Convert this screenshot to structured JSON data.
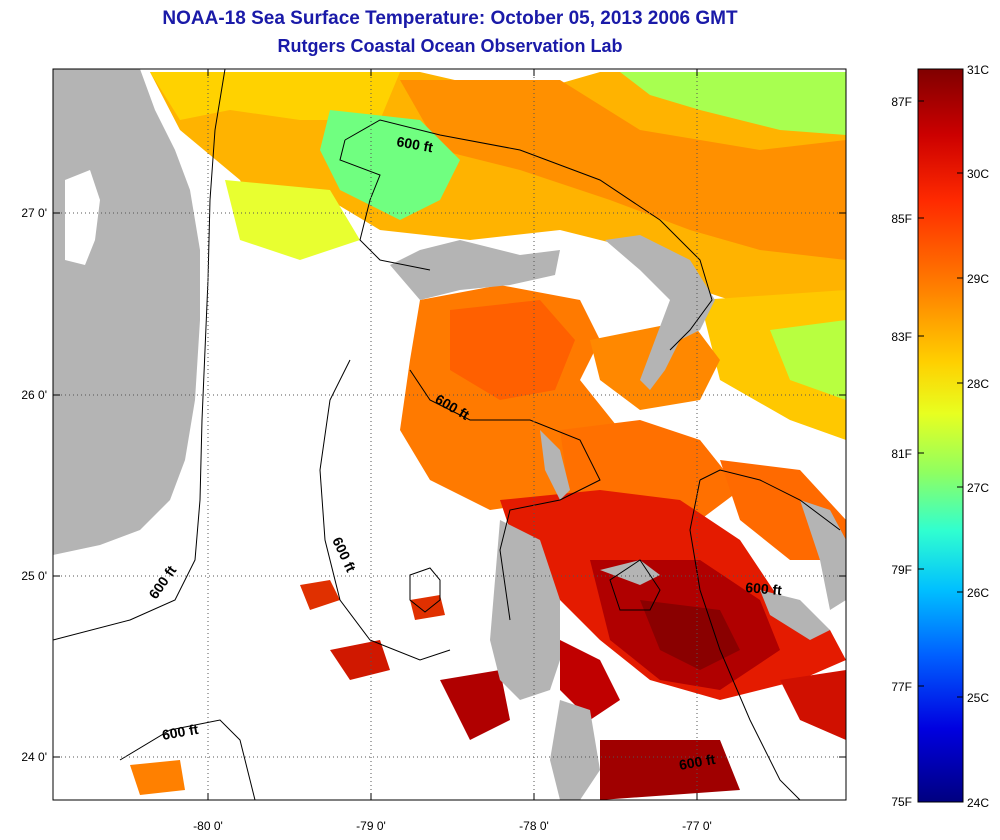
{
  "title_line1": "NOAA-18 Sea Surface Temperature:  October 05, 2013 2006 GMT",
  "title_line2": "Rutgers Coastal Ocean Observation Lab",
  "lat_labels": [
    "27 0'",
    "26 0'",
    "25 0'",
    "24 0'"
  ],
  "lon_labels": [
    "-80 0'",
    "-79 0'",
    "-78 0'",
    "-77 0'"
  ],
  "contour_label": "600 ft",
  "colorbar_celsius": [
    "31C",
    "30C",
    "29C",
    "28C",
    "27C",
    "26C",
    "25C",
    "24C"
  ],
  "colorbar_fahrenheit": [
    "87F",
    "85F",
    "83F",
    "81F",
    "79F",
    "77F",
    "75F"
  ],
  "colorscale": [
    "#800000",
    "#cc0000",
    "#ff2a00",
    "#ff8000",
    "#ffd000",
    "#e8ff20",
    "#90ff60",
    "#30ffd0",
    "#00c0ff",
    "#0060ff",
    "#0000e0",
    "#000080"
  ],
  "colors": {
    "title": "#1a1aa8",
    "land": "#b4b4b4",
    "no_data": "#ffffff"
  }
}
